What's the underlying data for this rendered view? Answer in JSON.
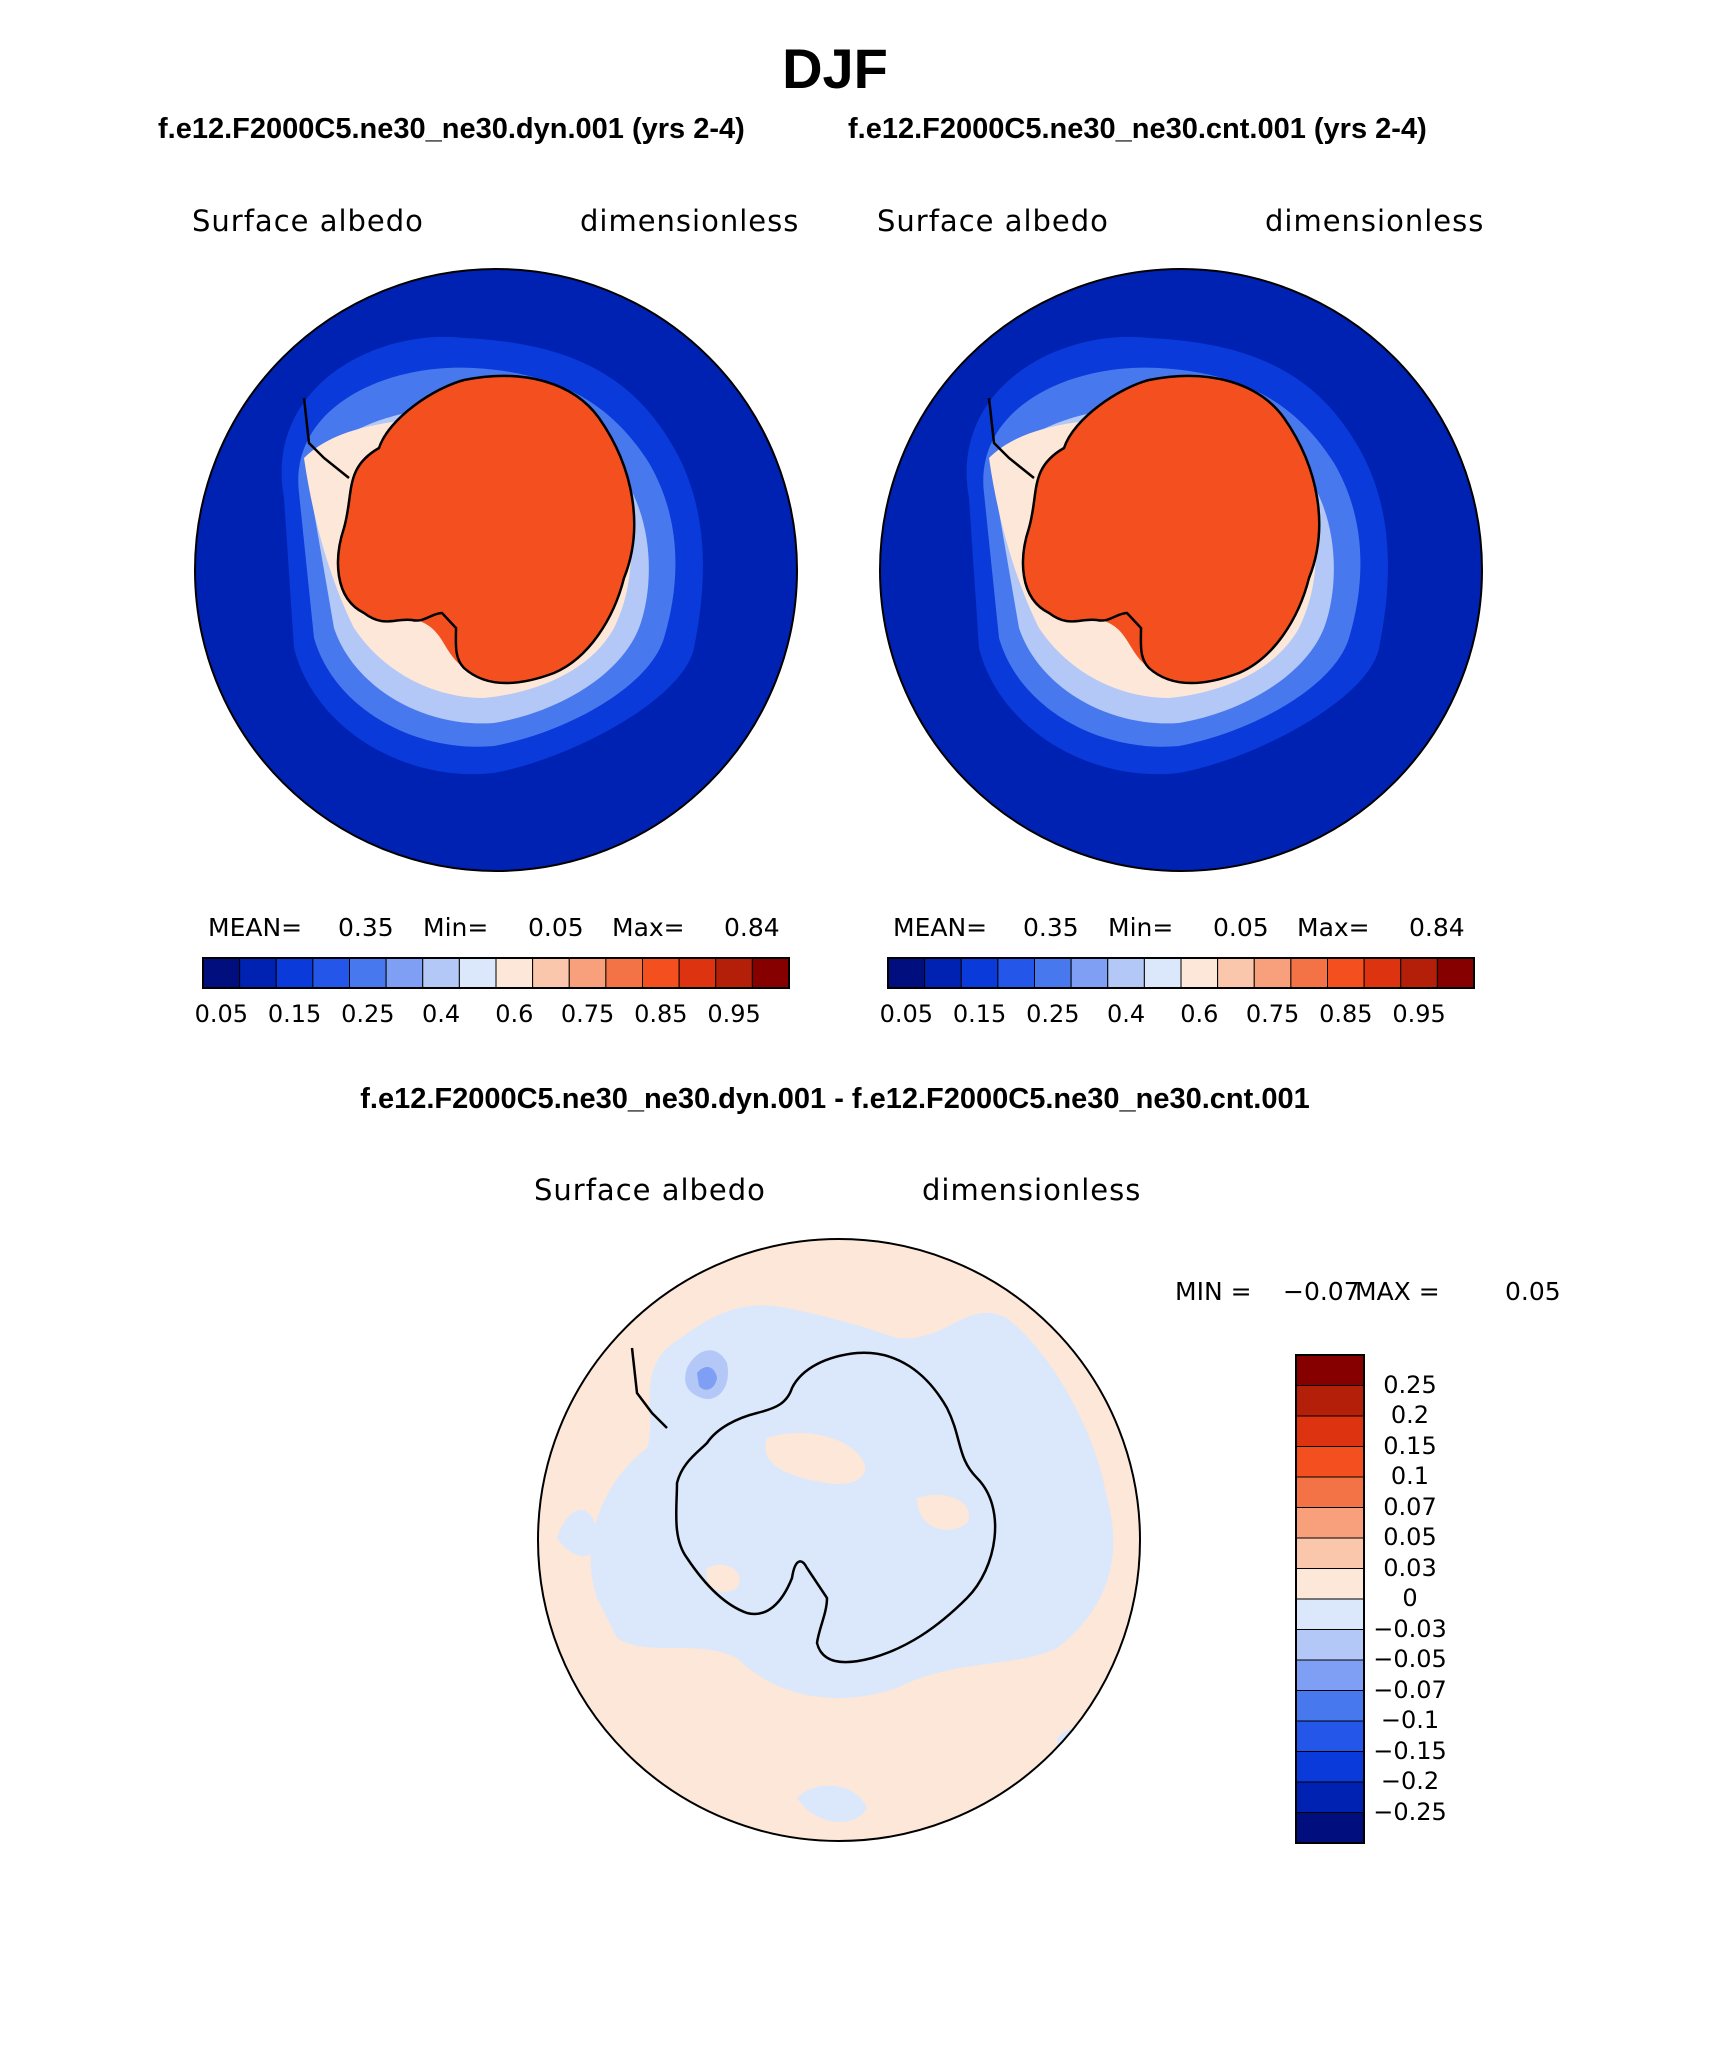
{
  "figure": {
    "title": "DJF",
    "subtitle_left": "f.e12.F2000C5.ne30_ne30.dyn.001 (yrs 2-4)",
    "subtitle_right": "f.e12.F2000C5.ne30_ne30.cnt.001 (yrs 2-4)",
    "diff_title": "f.e12.F2000C5.ne30_ne30.dyn.001 - f.e12.F2000C5.ne30_ne30.cnt.001"
  },
  "panels": [
    {
      "variable": "Surface albedo",
      "units": "dimensionless",
      "stats": {
        "mean_label": "MEAN=",
        "mean": "0.35",
        "min_label": "Min=",
        "min": "0.05",
        "max_label": "Max=",
        "max": "0.84"
      }
    },
    {
      "variable": "Surface albedo",
      "units": "dimensionless",
      "stats": {
        "mean_label": "MEAN=",
        "mean": "0.35",
        "min_label": "Min=",
        "min": "0.05",
        "max_label": "Max=",
        "max": "0.84"
      }
    }
  ],
  "diff_panel": {
    "variable": "Surface albedo",
    "units": "dimensionless",
    "min_label": "MIN =",
    "min": "−0.07",
    "max_label": "MAX =",
    "max": "0.05"
  },
  "colorbar_top": {
    "tick_labels": [
      "0.05",
      "0.15",
      "0.25",
      "0.4",
      "0.6",
      "0.75",
      "0.85",
      "0.95"
    ],
    "colors": [
      "#000e7e",
      "#0022b3",
      "#0a3ad9",
      "#2456ea",
      "#4778ee",
      "#7e9ff3",
      "#b3c8f7",
      "#dbe8fb",
      "#fde7d8",
      "#fbc7ac",
      "#f8a07b",
      "#f47346",
      "#f34f1f",
      "#dd3310",
      "#b41f09",
      "#860000"
    ]
  },
  "colorbar_diff": {
    "tick_labels": [
      "0.25",
      "0.2",
      "0.15",
      "0.1",
      "0.07",
      "0.05",
      "0.03",
      "0",
      "−0.03",
      "−0.05",
      "−0.07",
      "−0.1",
      "−0.15",
      "−0.2",
      "−0.25"
    ],
    "colors": [
      "#860000",
      "#b41f09",
      "#dd3310",
      "#f34f1f",
      "#f47346",
      "#f8a07b",
      "#fbc7ac",
      "#fde7d8",
      "#dbe8fb",
      "#b3c8f7",
      "#7e9ff3",
      "#4778ee",
      "#2456ea",
      "#0a3ad9",
      "#0022b3",
      "#000e7e"
    ]
  },
  "map_colors": {
    "ocean_low": "#0022b3",
    "ice_high": "#f34f1f",
    "diff_positive": "#fde7d8",
    "diff_negative": "#dbe8fb"
  }
}
